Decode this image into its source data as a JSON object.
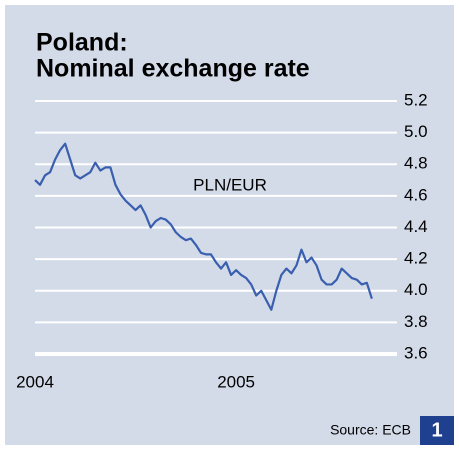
{
  "chart_data": {
    "type": "line",
    "title": [
      "Poland:",
      "Nominal exchange rate"
    ],
    "x": [
      2004,
      2004.025,
      2004.05,
      2004.075,
      2004.1,
      2004.125,
      2004.15,
      2004.175,
      2004.2,
      2004.225,
      2004.25,
      2004.275,
      2004.3,
      2004.325,
      2004.35,
      2004.375,
      2004.4,
      2004.425,
      2004.45,
      2004.475,
      2004.5,
      2004.525,
      2004.55,
      2004.575,
      2004.6,
      2004.625,
      2004.65,
      2004.675,
      2004.7,
      2004.725,
      2004.75,
      2004.775,
      2004.8,
      2004.825,
      2004.85,
      2004.875,
      2004.9,
      2004.925,
      2004.95,
      2004.975,
      2005,
      2005.025,
      2005.05,
      2005.075,
      2005.1,
      2005.125,
      2005.15,
      2005.175,
      2005.2,
      2005.225,
      2005.25,
      2005.275,
      2005.3,
      2005.325,
      2005.35,
      2005.375,
      2005.4,
      2005.425,
      2005.45,
      2005.475,
      2005.5,
      2005.525,
      2005.55,
      2005.575,
      2005.6,
      2005.625,
      2005.65,
      2005.675
    ],
    "series": [
      {
        "name": "PLN/EUR",
        "color": "#3a5fae",
        "values": [
          4.7,
          4.67,
          4.73,
          4.75,
          4.83,
          4.89,
          4.93,
          4.83,
          4.73,
          4.71,
          4.73,
          4.75,
          4.81,
          4.76,
          4.78,
          4.78,
          4.67,
          4.61,
          4.57,
          4.54,
          4.51,
          4.54,
          4.48,
          4.4,
          4.44,
          4.46,
          4.45,
          4.42,
          4.37,
          4.34,
          4.32,
          4.33,
          4.29,
          4.24,
          4.23,
          4.23,
          4.18,
          4.14,
          4.18,
          4.1,
          4.13,
          4.1,
          4.08,
          4.04,
          3.97,
          4.0,
          3.94,
          3.88,
          4.0,
          4.1,
          4.14,
          4.11,
          4.16,
          4.26,
          4.18,
          4.21,
          4.16,
          4.07,
          4.04,
          4.04,
          4.07,
          4.14,
          4.11,
          4.08,
          4.07,
          4.04,
          4.05,
          3.95
        ]
      }
    ],
    "xlim": [
      2004,
      2005.8
    ],
    "xticks": [
      2004,
      2005
    ],
    "ylim": [
      3.6,
      5.2
    ],
    "yticks": [
      {
        "value": 3.6,
        "label": "3.6"
      },
      3.8,
      {
        "value": 4,
        "label": "4.0"
      },
      4.2,
      4.4,
      4.6,
      4.8,
      {
        "value": 5,
        "label": "5.0"
      },
      5.2
    ],
    "grid": true,
    "source": "Source: ECB",
    "badge": "1"
  }
}
